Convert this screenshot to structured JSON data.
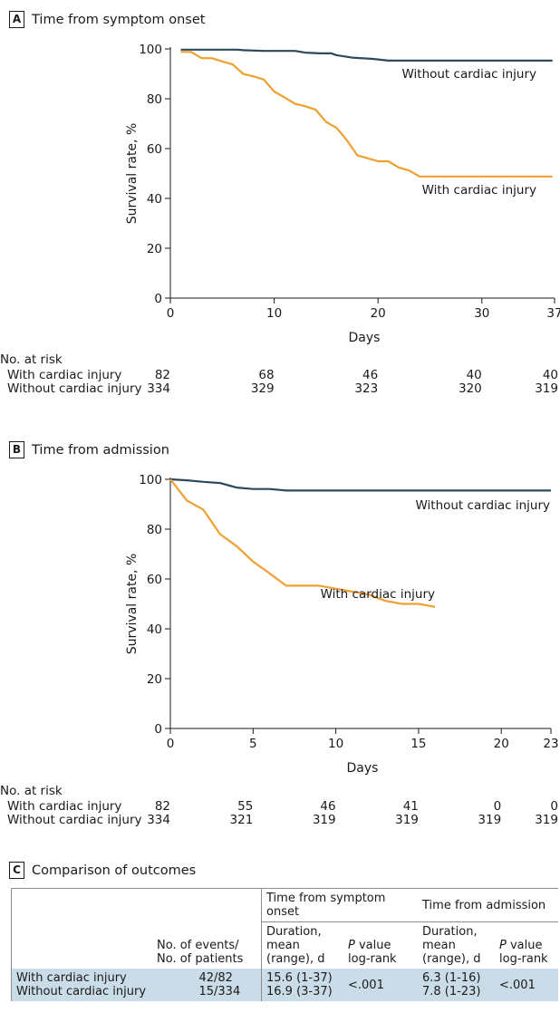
{
  "panels": [
    {
      "letter": "A",
      "title": "Time from symptom onset",
      "chart_data": {
        "type": "line",
        "xlabel": "Days",
        "ylabel": "Survival rate, %",
        "xlim": [
          0,
          37
        ],
        "ylim": [
          0,
          100
        ],
        "xticks": [
          0,
          10,
          20,
          30,
          37
        ],
        "yticks": [
          0,
          20,
          40,
          60,
          80,
          100
        ],
        "series": [
          {
            "name": "Without cardiac injury",
            "color": "#2b4a5c",
            "x": [
              1,
              6.5,
              7,
              9,
              12,
              13,
              14.5,
              15.5,
              16,
              17.5,
              19.5,
              21,
              24,
              36.8
            ],
            "y": [
              99.7,
              99.7,
              99.5,
              99.2,
              99.2,
              98.5,
              98.2,
              98.2,
              97.5,
              96.5,
              96,
              95.3,
              95.3,
              95.3
            ]
          },
          {
            "name": "With cardiac injury",
            "color": "#f0a030",
            "x": [
              1,
              2,
              3,
              4,
              5,
              6,
              7,
              8,
              9,
              10,
              11,
              12,
              13,
              14,
              15,
              16,
              17,
              18,
              19,
              20,
              21,
              22,
              23,
              24,
              36.8
            ],
            "y": [
              98.8,
              98.8,
              96.3,
              96.3,
              95,
              93.8,
              90,
              89,
              87.7,
              82.9,
              80.5,
              78,
              77,
              75.6,
              70.7,
              68.3,
              63.4,
              57.3,
              56.1,
              54.9,
              54.9,
              52.4,
              51.2,
              48.8,
              48.8
            ]
          }
        ]
      },
      "risk": {
        "header": "No. at risk",
        "ticks": [
          0,
          10,
          20,
          30,
          37
        ],
        "rows": [
          {
            "label": "With cardiac injury",
            "values": [
              "82",
              "68",
              "46",
              "40",
              "40"
            ]
          },
          {
            "label": "Without cardiac injury",
            "values": [
              "334",
              "329",
              "323",
              "320",
              "319"
            ]
          }
        ]
      }
    },
    {
      "letter": "B",
      "title": "Time from admission",
      "chart_data": {
        "type": "line",
        "xlabel": "Days",
        "ylabel": "Survival rate, %",
        "xlim": [
          0,
          23
        ],
        "ylim": [
          0,
          100
        ],
        "xticks": [
          0,
          5,
          10,
          15,
          20,
          23
        ],
        "yticks": [
          0,
          20,
          40,
          60,
          80,
          100
        ],
        "series": [
          {
            "name": "Without cardiac injury",
            "color": "#2b4a5c",
            "x": [
              0,
              1,
              2,
              3,
              4,
              5,
              6,
              7,
              23
            ],
            "y": [
              100,
              99.6,
              99,
              98.5,
              96.7,
              96.1,
              96.1,
              95.5,
              95.5
            ]
          },
          {
            "name": "With cardiac injury",
            "color": "#f0a030",
            "x": [
              0,
              1,
              2,
              3,
              4,
              5,
              6,
              7,
              8,
              9,
              10,
              11,
              12,
              13,
              14,
              15,
              16
            ],
            "y": [
              100,
              91.5,
              87.8,
              78,
              73.2,
              67,
              62.2,
              57.3,
              57.3,
              57.3,
              56.1,
              54.9,
              53.7,
              51.2,
              50,
              50,
              48.8
            ]
          }
        ]
      },
      "risk": {
        "header": "No. at risk",
        "ticks": [
          0,
          5,
          10,
          15,
          20,
          23
        ],
        "rows": [
          {
            "label": "With cardiac injury",
            "values": [
              "82",
              "55",
              "46",
              "41",
              "0",
              "0"
            ]
          },
          {
            "label": "Without cardiac injury",
            "values": [
              "334",
              "321",
              "319",
              "319",
              "319",
              "319"
            ]
          }
        ]
      }
    }
  ],
  "comparison": {
    "letter": "C",
    "title": "Comparison of outcomes",
    "group_headers": [
      "Time from symptom onset",
      "Time from admission"
    ],
    "col_events": "No. of events/ No. of patients",
    "col_duration": "Duration, mean (range), d",
    "col_p_italic": "P",
    "col_p_rest": " value log-rank",
    "rows_labels": [
      "With cardiac injury",
      "Without cardiac injury"
    ],
    "rows_events": [
      "42/82",
      "15/334"
    ],
    "onset_durations": [
      "15.6 (1-37)",
      "16.9 (3-37)"
    ],
    "onset_p": "<.001",
    "admission_durations": [
      "6.3 (1-16)",
      "7.8 (1-23)"
    ],
    "admission_p": "<.001"
  }
}
